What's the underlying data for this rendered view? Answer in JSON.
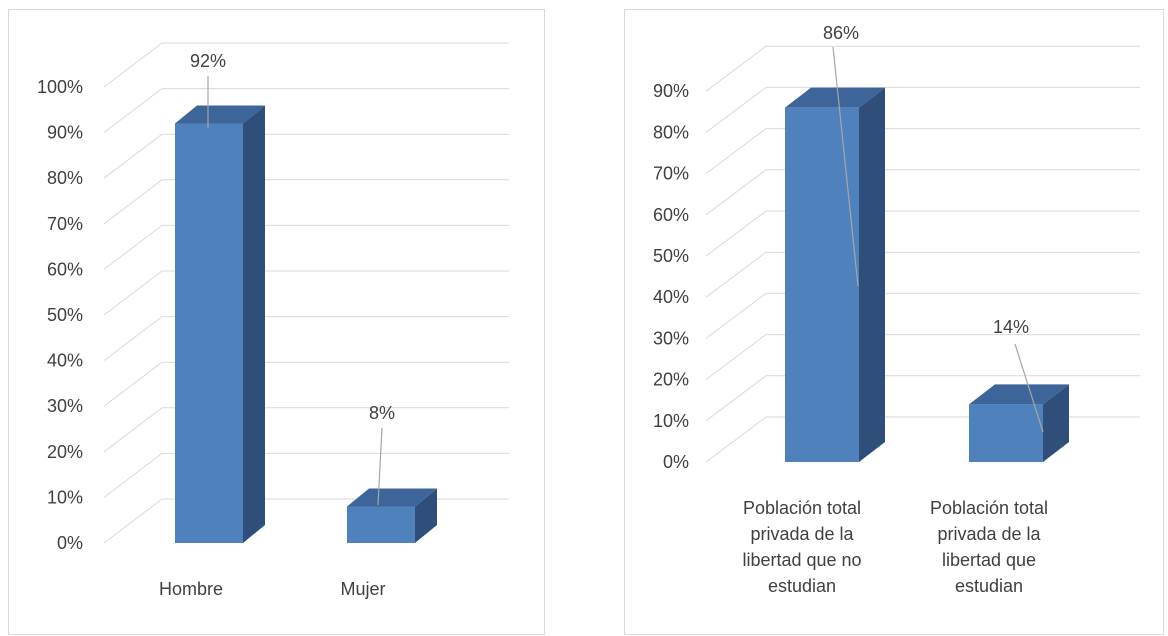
{
  "colors": {
    "bar_front": "#4f81bd",
    "bar_side": "#2f4f7a",
    "bar_top": "#3e6599",
    "grid": "#d9d9d9",
    "leader": "#a6a6a6",
    "text": "#404040"
  },
  "chart_data": [
    {
      "type": "bar",
      "style": "3d-column",
      "title": "",
      "xlabel": "",
      "ylabel": "",
      "ylim": [
        0,
        1
      ],
      "yticks": [
        "0%",
        "10%",
        "20%",
        "30%",
        "40%",
        "50%",
        "60%",
        "70%",
        "80%",
        "90%",
        "100%"
      ],
      "categories": [
        "Hombre",
        "Mujer"
      ],
      "values": [
        0.92,
        0.08
      ],
      "data_labels": [
        "92%",
        "8%"
      ],
      "grid": true,
      "legend": "none"
    },
    {
      "type": "bar",
      "style": "3d-column",
      "title": "",
      "xlabel": "",
      "ylabel": "",
      "ylim": [
        0,
        0.9
      ],
      "yticks": [
        "0%",
        "10%",
        "20%",
        "30%",
        "40%",
        "50%",
        "60%",
        "70%",
        "80%",
        "90%"
      ],
      "categories": [
        "Población total privada de la libertad que no estudian",
        "Población total privada de la libertad que estudian"
      ],
      "category_lines": [
        [
          "Población total",
          "privada de la",
          "libertad que no",
          "estudian"
        ],
        [
          "Población total",
          "privada de la",
          "libertad que",
          "estudian"
        ]
      ],
      "values": [
        0.86,
        0.14
      ],
      "data_labels": [
        "86%",
        "14%"
      ],
      "grid": true,
      "legend": "none"
    }
  ]
}
